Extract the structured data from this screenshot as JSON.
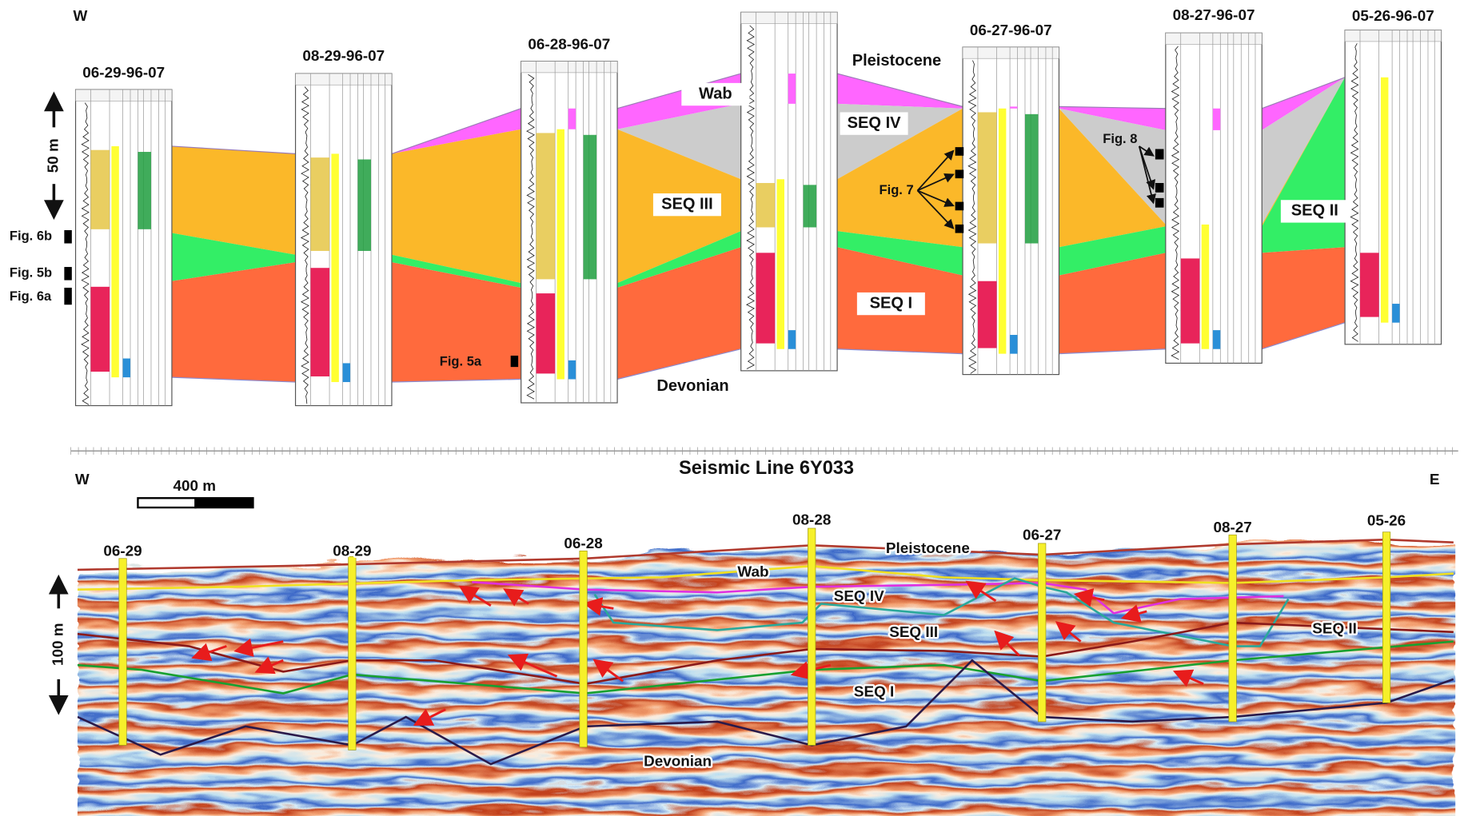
{
  "top_panel": {
    "direction": "W",
    "wells": [
      "06-29-96-07",
      "08-29-96-07",
      "06-28-96-07",
      "06-27-96-07",
      "08-27-96-07",
      "05-26-96-07"
    ],
    "units": [
      "Pleistocene",
      "Wab",
      "SEQ IV",
      "SEQ III",
      "SEQ II",
      "SEQ I",
      "Devonian"
    ],
    "figure_refs": [
      "Fig. 6b",
      "Fig. 5b",
      "Fig. 6a",
      "Fig. 5a",
      "Fig. 7",
      "Fig. 8"
    ],
    "scale": "50 m"
  },
  "seismic_panel": {
    "title": "Seismic Line 6Y033",
    "west": "W",
    "east": "E",
    "scale_bar": "400 m",
    "vertical_scale": "100 m",
    "wells": [
      "06-29",
      "08-29",
      "06-28",
      "08-28",
      "06-27",
      "08-27",
      "05-26"
    ],
    "units": [
      "Pleistocene",
      "Wab",
      "SEQ IV",
      "SEQ III",
      "SEQ II",
      "SEQ I",
      "Devonian"
    ]
  }
}
